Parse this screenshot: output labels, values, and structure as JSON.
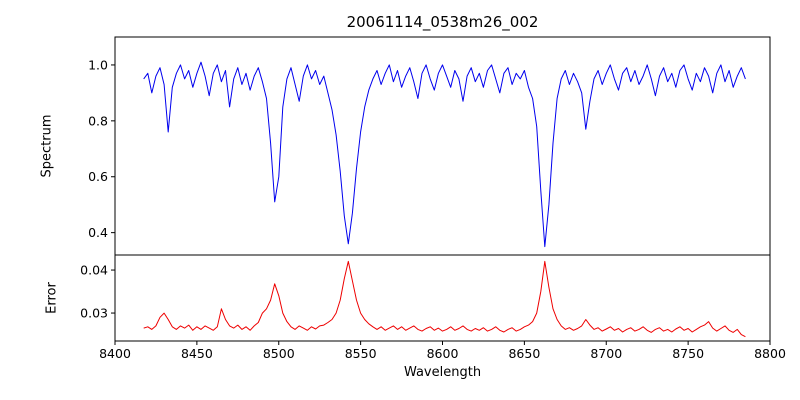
{
  "chart_data": {
    "type": "line",
    "title": "20061114_0538m26_002",
    "xlabel": "Wavelength",
    "xlim": [
      8400,
      8800
    ],
    "x_start": 8417.5,
    "x_step": 2.5,
    "xtick_values": [
      8400,
      8450,
      8500,
      8550,
      8600,
      8650,
      8700,
      8750,
      8800
    ],
    "xtick_labels": [
      "8400",
      "8450",
      "8500",
      "8550",
      "8600",
      "8650",
      "8700",
      "8750",
      "8800"
    ],
    "grid": false,
    "legend": "none",
    "panels": [
      {
        "name": "spectrum",
        "ylabel": "Spectrum",
        "color": "#0000ee",
        "ylim": [
          0.32,
          1.1
        ],
        "ytick_values": [
          0.4,
          0.6,
          0.8,
          1.0
        ],
        "ytick_labels": [
          "0.4",
          "0.6",
          "0.8",
          "1.0"
        ],
        "values": [
          0.95,
          0.97,
          0.9,
          0.96,
          0.99,
          0.93,
          0.76,
          0.92,
          0.97,
          1.0,
          0.95,
          0.98,
          0.92,
          0.97,
          1.01,
          0.96,
          0.89,
          0.97,
          1.0,
          0.94,
          0.98,
          0.85,
          0.95,
          0.99,
          0.93,
          0.97,
          0.91,
          0.96,
          0.99,
          0.94,
          0.88,
          0.72,
          0.51,
          0.6,
          0.85,
          0.95,
          0.99,
          0.93,
          0.87,
          0.96,
          1.0,
          0.95,
          0.98,
          0.93,
          0.96,
          0.9,
          0.84,
          0.75,
          0.62,
          0.46,
          0.36,
          0.47,
          0.63,
          0.76,
          0.85,
          0.91,
          0.95,
          0.98,
          0.93,
          0.97,
          1.0,
          0.94,
          0.98,
          0.92,
          0.96,
          0.99,
          0.94,
          0.88,
          0.97,
          1.0,
          0.95,
          0.91,
          0.97,
          1.0,
          0.96,
          0.92,
          0.98,
          0.95,
          0.87,
          0.96,
          0.99,
          0.94,
          0.97,
          0.92,
          0.98,
          1.0,
          0.95,
          0.9,
          0.97,
          0.99,
          0.93,
          0.97,
          0.95,
          0.98,
          0.92,
          0.88,
          0.78,
          0.55,
          0.35,
          0.5,
          0.72,
          0.88,
          0.95,
          0.98,
          0.93,
          0.97,
          0.94,
          0.9,
          0.77,
          0.87,
          0.95,
          0.98,
          0.93,
          0.97,
          1.0,
          0.95,
          0.91,
          0.97,
          0.99,
          0.94,
          0.98,
          0.93,
          0.96,
          1.0,
          0.95,
          0.89,
          0.96,
          0.99,
          0.94,
          0.97,
          0.92,
          0.98,
          1.0,
          0.95,
          0.91,
          0.97,
          0.94,
          0.99,
          0.96,
          0.9,
          0.97,
          1.0,
          0.94,
          0.98,
          0.92,
          0.96,
          0.99,
          0.95
        ]
      },
      {
        "name": "error",
        "ylabel": "Error",
        "color": "#ee0000",
        "ylim": [
          0.0235,
          0.0435
        ],
        "ytick_values": [
          0.03,
          0.04
        ],
        "ytick_labels": [
          "0.03",
          "0.04"
        ],
        "values": [
          0.0265,
          0.0268,
          0.0262,
          0.027,
          0.029,
          0.03,
          0.0285,
          0.0268,
          0.0262,
          0.027,
          0.0265,
          0.0272,
          0.026,
          0.0268,
          0.0262,
          0.027,
          0.0265,
          0.026,
          0.0268,
          0.031,
          0.0285,
          0.027,
          0.0265,
          0.0272,
          0.0262,
          0.0268,
          0.026,
          0.027,
          0.0278,
          0.03,
          0.031,
          0.033,
          0.0368,
          0.034,
          0.03,
          0.028,
          0.0268,
          0.0262,
          0.027,
          0.0265,
          0.026,
          0.0268,
          0.0263,
          0.027,
          0.0272,
          0.0278,
          0.0285,
          0.03,
          0.033,
          0.038,
          0.042,
          0.0375,
          0.033,
          0.03,
          0.0285,
          0.0275,
          0.0268,
          0.0262,
          0.0268,
          0.026,
          0.0265,
          0.027,
          0.0262,
          0.0268,
          0.026,
          0.0265,
          0.027,
          0.0262,
          0.0258,
          0.0264,
          0.0268,
          0.026,
          0.0265,
          0.0258,
          0.0262,
          0.0268,
          0.026,
          0.0264,
          0.027,
          0.0262,
          0.0258,
          0.0264,
          0.026,
          0.0266,
          0.0258,
          0.0262,
          0.0268,
          0.026,
          0.0256,
          0.0262,
          0.0266,
          0.0258,
          0.0262,
          0.0268,
          0.0272,
          0.028,
          0.03,
          0.035,
          0.042,
          0.036,
          0.031,
          0.0285,
          0.027,
          0.0262,
          0.0266,
          0.026,
          0.0264,
          0.027,
          0.0285,
          0.0272,
          0.0262,
          0.0266,
          0.0258,
          0.0263,
          0.0268,
          0.026,
          0.0264,
          0.0256,
          0.0262,
          0.0266,
          0.0258,
          0.0262,
          0.0268,
          0.026,
          0.0255,
          0.0262,
          0.0266,
          0.0258,
          0.0262,
          0.0256,
          0.0263,
          0.0268,
          0.026,
          0.0264,
          0.0256,
          0.0262,
          0.0268,
          0.0272,
          0.028,
          0.0265,
          0.0258,
          0.0264,
          0.027,
          0.026,
          0.0255,
          0.0262,
          0.025,
          0.0245
        ]
      }
    ]
  }
}
